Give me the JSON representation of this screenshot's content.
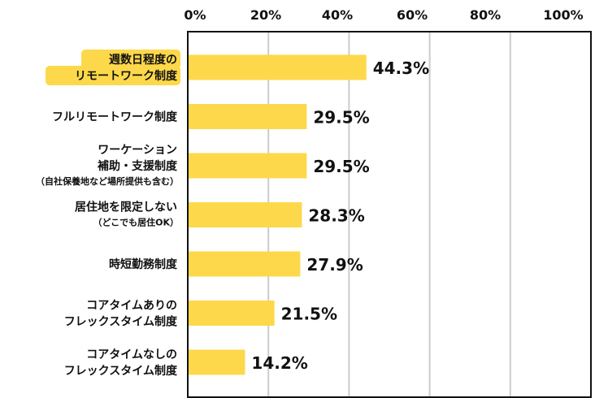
{
  "chart_data": {
    "type": "bar",
    "orientation": "horizontal",
    "categories": [
      {
        "lines": [
          "週数日程度の",
          "リモートワーク制度"
        ],
        "sub": "",
        "highlight": true
      },
      {
        "lines": [
          "フルリモートワーク制度"
        ],
        "sub": "",
        "highlight": false
      },
      {
        "lines": [
          "ワーケーション",
          "補助・支援制度"
        ],
        "sub": "（自社保養地など場所提供も含む）",
        "highlight": false
      },
      {
        "lines": [
          "居住地を限定しない"
        ],
        "sub": "（どこでも居住OK）",
        "highlight": false
      },
      {
        "lines": [
          "時短勤務制度"
        ],
        "sub": "",
        "highlight": false
      },
      {
        "lines": [
          "コアタイムありの",
          "フレックスタイム制度"
        ],
        "sub": "",
        "highlight": false
      },
      {
        "lines": [
          "コアタイムなしの",
          "フレックスタイム制度"
        ],
        "sub": "",
        "highlight": false
      }
    ],
    "values": [
      44.3,
      29.5,
      29.5,
      28.3,
      27.9,
      21.5,
      14.2
    ],
    "value_labels": [
      "44.3%",
      "29.5%",
      "29.5%",
      "28.3%",
      "27.9%",
      "21.5%",
      "14.2%"
    ],
    "xlim": [
      0,
      100
    ],
    "x_ticks": [
      0,
      20,
      40,
      60,
      80,
      100
    ],
    "x_tick_labels": [
      "0%",
      "20%",
      "40%",
      "60%",
      "80%",
      "100%"
    ],
    "axis_position": "top",
    "grid": true,
    "colors": {
      "bar": "#FDD84A",
      "highlight": "#FDD84A",
      "grid": "#CCCCCC",
      "frame": "#111111"
    }
  }
}
